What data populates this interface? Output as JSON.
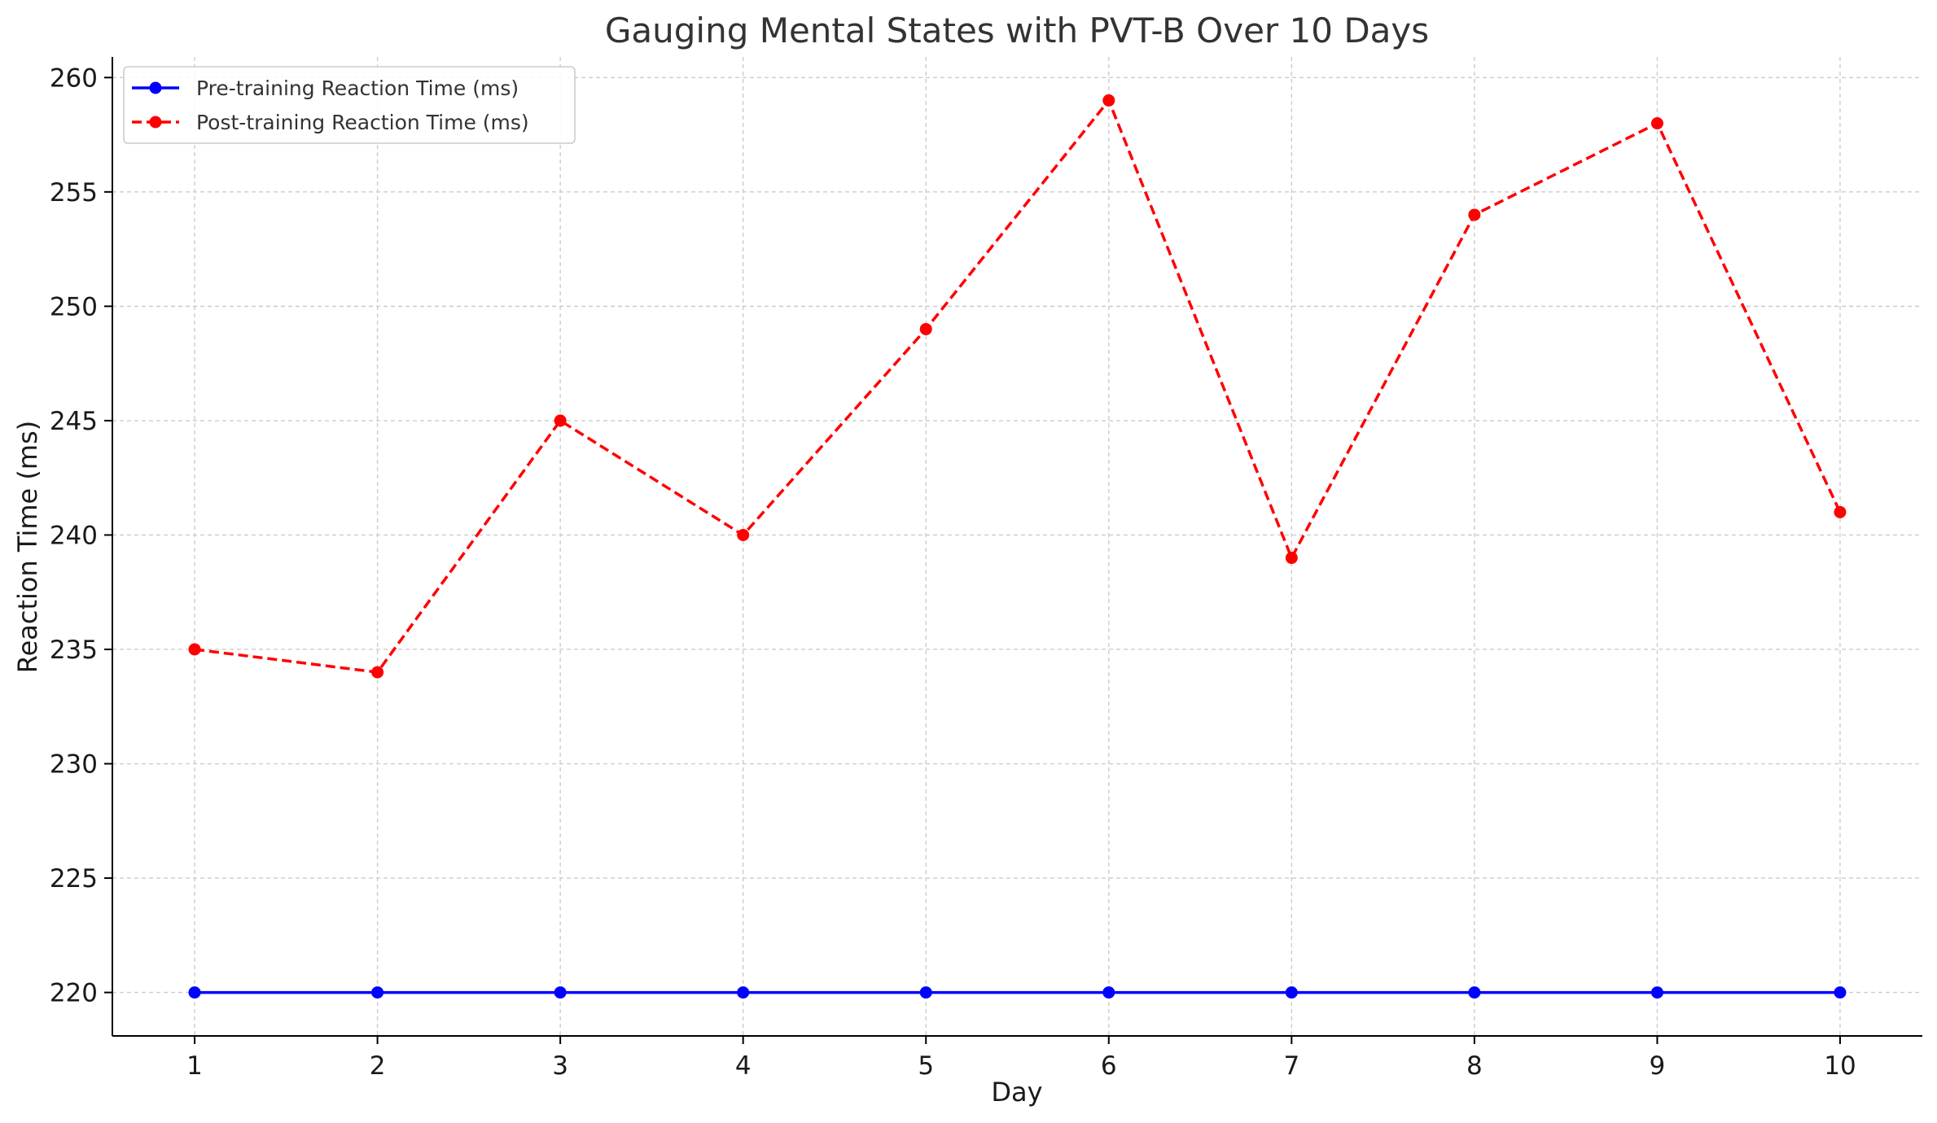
{
  "chart_data": {
    "type": "line",
    "title": "Gauging Mental States with PVT-B Over 10 Days",
    "xlabel": "Day",
    "ylabel": "Reaction Time (ms)",
    "x": [
      1,
      2,
      3,
      4,
      5,
      6,
      7,
      8,
      9,
      10
    ],
    "xticks": [
      "1",
      "2",
      "3",
      "4",
      "5",
      "6",
      "7",
      "8",
      "9",
      "10"
    ],
    "yticks": [
      220,
      225,
      230,
      235,
      240,
      245,
      250,
      255,
      260
    ],
    "xlim": [
      0.55,
      10.45
    ],
    "ylim": [
      218.1,
      260.9
    ],
    "grid": true,
    "legend_position": "top-left",
    "series": [
      {
        "name": "Pre-training Reaction Time (ms)",
        "values": [
          220,
          220,
          220,
          220,
          220,
          220,
          220,
          220,
          220,
          220
        ],
        "color": "#0000ff",
        "line_style": "solid",
        "marker": "circle"
      },
      {
        "name": "Post-training Reaction Time (ms)",
        "values": [
          235,
          234,
          245,
          240,
          249,
          259,
          239,
          254,
          258,
          241
        ],
        "color": "#ff0000",
        "line_style": "dashed",
        "marker": "circle"
      }
    ]
  }
}
